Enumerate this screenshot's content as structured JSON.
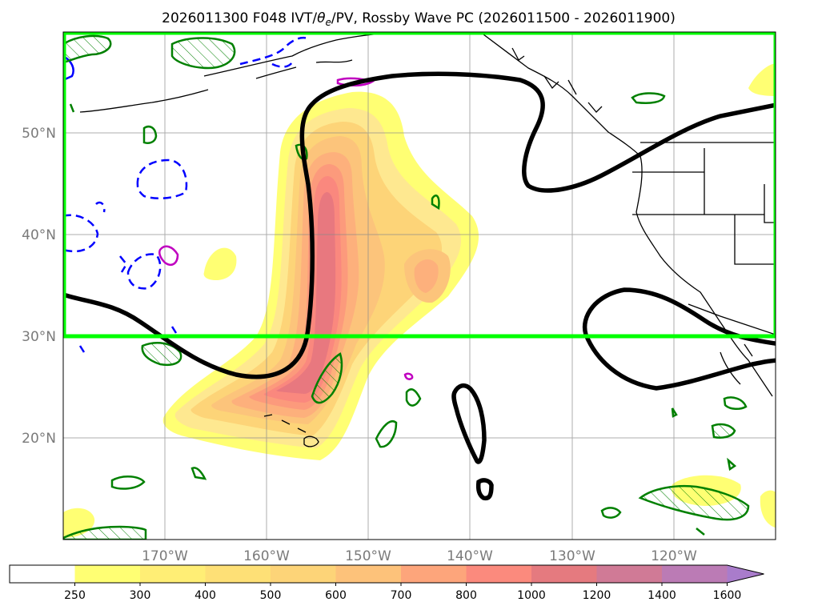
{
  "title": "2026011300 F048 IVT/θe/PV, Rossby Wave PC (2026011500 - 2026011900)",
  "title_parts": {
    "pre": "2026011300 F048 IVT/",
    "theta": "θ",
    "sub": "e",
    "post": "/PV, Rossby Wave PC (2026011500 - 2026011900)"
  },
  "map": {
    "lon_range": [
      -180,
      -110
    ],
    "lat_range": [
      10,
      60
    ],
    "lon_ticks": [
      {
        "value": -170,
        "label": "170°W"
      },
      {
        "value": -160,
        "label": "160°W"
      },
      {
        "value": -150,
        "label": "150°W"
      },
      {
        "value": -140,
        "label": "140°W"
      },
      {
        "value": -130,
        "label": "130°W"
      },
      {
        "value": -120,
        "label": "120°W"
      }
    ],
    "lat_ticks": [
      {
        "value": 20,
        "label": "20°N"
      },
      {
        "value": 30,
        "label": "30°N"
      },
      {
        "value": 40,
        "label": "40°N"
      },
      {
        "value": 50,
        "label": "50°N"
      }
    ],
    "region_box": {
      "lon": [
        -180,
        -110
      ],
      "lat": [
        30,
        60
      ],
      "color": "#00ff00"
    },
    "gridlines": true
  },
  "colorbar": {
    "levels": [
      250,
      300,
      400,
      500,
      600,
      700,
      800,
      1000,
      1200,
      1400,
      1600
    ],
    "labels": [
      "250",
      "300",
      "400",
      "500",
      "600",
      "700",
      "800",
      "1000",
      "1200",
      "1400",
      "1600"
    ],
    "colors": [
      "#ffff73",
      "#ffee75",
      "#fee076",
      "#fdd478",
      "#fdc27a",
      "#fda57b",
      "#fb8a7d",
      "#e57a7f",
      "#d07a96",
      "#bb7bb5",
      "#a97ccb"
    ],
    "under_color": "#ffffff",
    "extend": "max"
  },
  "colors": {
    "wave_contour": "#000000",
    "green_contour": "#008000",
    "blue_dashed": "#0000ff",
    "magenta": "#c000c0",
    "coastline": "#000000"
  }
}
